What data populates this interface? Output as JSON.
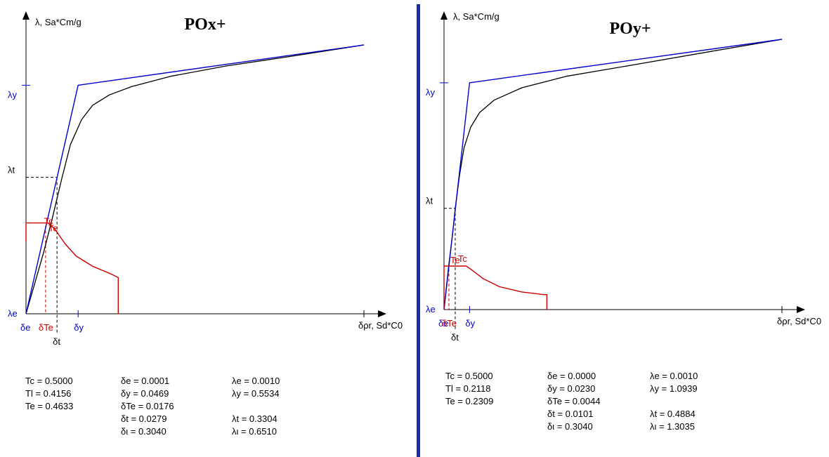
{
  "chart_data": [
    {
      "type": "line",
      "title": "POx+",
      "y_axis_label": "λ, Sa*Cm/g",
      "x_axis_label": "δρr, Sd*C0",
      "x_range": [
        0,
        0.304
      ],
      "y_range": [
        0,
        0.651
      ],
      "series": [
        {
          "color": "#000000",
          "points": [
            [
              0.0,
              0.0
            ],
            [
              0.008,
              0.075
            ],
            [
              0.016,
              0.15
            ],
            [
              0.024,
              0.235
            ],
            [
              0.032,
              0.325
            ],
            [
              0.04,
              0.41
            ],
            [
              0.05,
              0.47
            ],
            [
              0.06,
              0.505
            ],
            [
              0.075,
              0.53
            ],
            [
              0.095,
              0.55
            ],
            [
              0.13,
              0.575
            ],
            [
              0.18,
              0.6
            ],
            [
              0.24,
              0.624
            ],
            [
              0.304,
              0.651
            ]
          ]
        },
        {
          "color": "#0000cc",
          "points": [
            [
              0.0,
              0.0
            ],
            [
              0.0469,
              0.5534
            ],
            [
              0.304,
              0.651
            ]
          ]
        },
        {
          "color": "#cc0000",
          "points": [
            [
              0.0,
              0.175
            ],
            [
              0.0,
              0.22
            ],
            [
              0.02,
              0.22
            ],
            [
              0.026,
              0.205
            ],
            [
              0.035,
              0.17
            ],
            [
              0.045,
              0.14
            ],
            [
              0.06,
              0.115
            ],
            [
              0.075,
              0.098
            ],
            [
              0.083,
              0.088
            ],
            [
              0.083,
              0.0
            ]
          ]
        }
      ],
      "markers": {
        "lambda_y": 0.5534,
        "lambda_t": 0.3304,
        "lambda_e": 0.001,
        "delta_e": 0.0001,
        "delta_Te": 0.0176,
        "delta_t": 0.0279,
        "delta_y": 0.0469,
        "x_labels": {
          "delta_e": "δe",
          "delta_Te": "δTe",
          "delta_t": "δt",
          "delta_y": "δy"
        },
        "y_labels": {
          "lambda_y": "λy",
          "lambda_t": "λt",
          "lambda_e": "λe"
        },
        "curve_labels": {
          "Tc": "Tc",
          "Te": "Te"
        }
      },
      "table": [
        [
          "Tc = 0.5000",
          "δe = 0.0001",
          "λe = 0.0010"
        ],
        [
          "Tl = 0.4156",
          "δy = 0.0469",
          "λy = 0.5534"
        ],
        [
          "Te = 0.4633",
          "δTe = 0.0176",
          ""
        ],
        [
          "",
          "δt = 0.0279",
          "λt = 0.3304"
        ],
        [
          "",
          "δι = 0.3040",
          "λι = 0.6510"
        ]
      ]
    },
    {
      "type": "line",
      "title": "POy+",
      "y_axis_label": "λ, Sa*Cm/g",
      "x_axis_label": "δρr, Sd*C0",
      "x_range": [
        0,
        0.304
      ],
      "y_range": [
        0,
        1.3035
      ],
      "series": [
        {
          "color": "#000000",
          "points": [
            [
              0.0,
              0.0
            ],
            [
              0.004,
              0.2
            ],
            [
              0.008,
              0.38
            ],
            [
              0.0101,
              0.4884
            ],
            [
              0.014,
              0.65
            ],
            [
              0.018,
              0.78
            ],
            [
              0.024,
              0.88
            ],
            [
              0.032,
              0.95
            ],
            [
              0.045,
              1.01
            ],
            [
              0.07,
              1.07
            ],
            [
              0.11,
              1.125
            ],
            [
              0.17,
              1.18
            ],
            [
              0.24,
              1.245
            ],
            [
              0.304,
              1.3035
            ]
          ]
        },
        {
          "color": "#0000cc",
          "points": [
            [
              0.0,
              0.0
            ],
            [
              0.023,
              1.0939
            ],
            [
              0.304,
              1.3035
            ]
          ]
        },
        {
          "color": "#cc0000",
          "points": [
            [
              0.0,
              0.0
            ],
            [
              0.0,
              0.21
            ],
            [
              0.01,
              0.21
            ],
            [
              0.02,
              0.21
            ],
            [
              0.024,
              0.195
            ],
            [
              0.035,
              0.15
            ],
            [
              0.05,
              0.11
            ],
            [
              0.07,
              0.085
            ],
            [
              0.09,
              0.072
            ],
            [
              0.0925,
              0.072
            ],
            [
              0.0925,
              0.0
            ]
          ]
        }
      ],
      "markers": {
        "lambda_y": 1.0939,
        "lambda_t": 0.4884,
        "lambda_e": 0.001,
        "delta_e": 0.0,
        "delta_Te": 0.0044,
        "delta_t": 0.0101,
        "delta_y": 0.023,
        "x_labels": {
          "delta_e": "δe",
          "delta_Te": "δTe",
          "delta_t": "δt",
          "delta_y": "δy"
        },
        "y_labels": {
          "lambda_y": "λy",
          "lambda_t": "λt",
          "lambda_e": "λe"
        },
        "curve_labels": {
          "Tc": "Tc",
          "Te": "Te"
        }
      },
      "table": [
        [
          "Tc = 0.5000",
          "δe = 0.0000",
          "λe = 0.0010"
        ],
        [
          "Tl = 0.2118",
          "δy = 0.0230",
          "λy = 1.0939"
        ],
        [
          "Te = 0.2309",
          "δTe = 0.0044",
          ""
        ],
        [
          "",
          "δt = 0.0101",
          "λt = 0.4884"
        ],
        [
          "",
          "δι = 0.3040",
          "λι = 1.3035"
        ]
      ]
    }
  ],
  "colors": {
    "primary": "#000000",
    "bilinear": "#0000cc",
    "spectrum": "#cc0000",
    "divider": "#1a2ea8",
    "label_blue": "#0000cc",
    "label_red": "#cc0000"
  }
}
